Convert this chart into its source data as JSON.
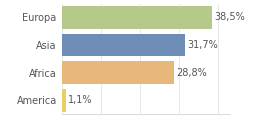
{
  "categories": [
    "Europa",
    "Asia",
    "Africa",
    "America"
  ],
  "values": [
    38.5,
    31.7,
    28.8,
    1.1
  ],
  "labels": [
    "38,5%",
    "31,7%",
    "28,8%",
    "1,1%"
  ],
  "bar_colors": [
    "#b5c98a",
    "#6e8eb8",
    "#e8b87a",
    "#e8d060"
  ],
  "background_color": "#ffffff",
  "xlim": [
    0,
    43
  ],
  "bar_height": 0.82,
  "label_fontsize": 7.0,
  "tick_fontsize": 7.0,
  "grid_color": "#dddddd",
  "label_color": "#555555",
  "tick_color": "#555555"
}
